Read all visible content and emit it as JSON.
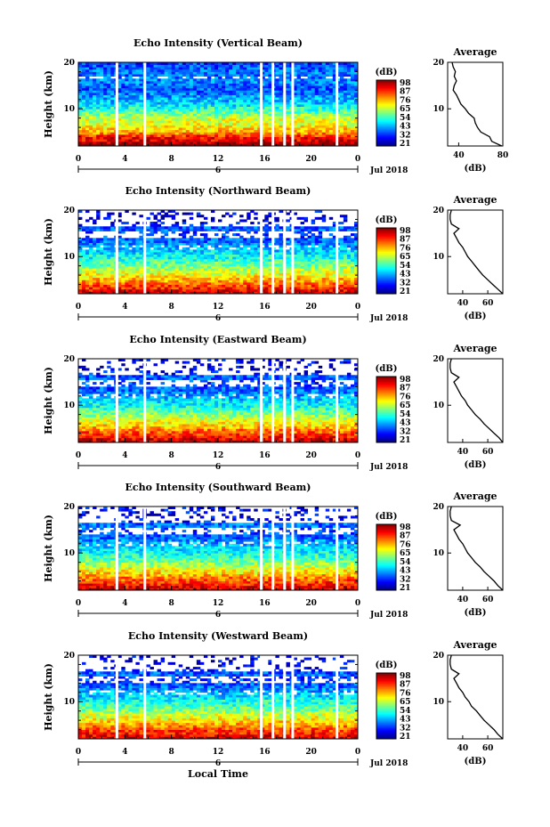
{
  "chart_data": [
    {
      "type": "heatmap",
      "title": "Echo Intensity (Vertical Beam)",
      "ylabel": "Height (km)",
      "x_ticks": [
        "0",
        "4",
        "8",
        "12",
        "16",
        "20",
        "0"
      ],
      "y_ticks": [
        "20",
        "10"
      ],
      "ylim": [
        2,
        20
      ],
      "day_label": "6",
      "month_label": "Jul 2018",
      "colorbar": {
        "unit": "(dB)",
        "ticks": [
          "98",
          "87",
          "76",
          "65",
          "54",
          "43",
          "32",
          "21"
        ],
        "range": [
          21,
          98
        ]
      },
      "missing_intervals_hours": [
        [
          3.2,
          3.4
        ],
        [
          5.6,
          5.7
        ],
        [
          15.6,
          15.8
        ],
        [
          16.6,
          16.8
        ],
        [
          17.6,
          17.7
        ],
        [
          18.3,
          18.45
        ],
        [
          22.1,
          22.3
        ]
      ],
      "average_profile": {
        "title": "Average",
        "xlabel": "(dB)",
        "x_ticks": [
          "40",
          "80"
        ],
        "xlim": [
          30,
          80
        ],
        "y_ticks": [
          "20",
          "10"
        ],
        "height_km": [
          2,
          3,
          4,
          5,
          6,
          7,
          8,
          9,
          10,
          11,
          12,
          13,
          14,
          15,
          16,
          17,
          18,
          19,
          20
        ],
        "db": [
          79,
          70,
          68,
          60,
          57,
          55,
          54,
          49,
          46,
          42,
          40,
          38,
          35,
          36,
          38,
          36,
          37,
          35,
          34
        ]
      }
    },
    {
      "type": "heatmap",
      "title": "Echo Intensity (Northward Beam)",
      "ylabel": "Height (km)",
      "x_ticks": [
        "0",
        "4",
        "8",
        "12",
        "16",
        "20",
        "0"
      ],
      "y_ticks": [
        "20",
        "10"
      ],
      "ylim": [
        2,
        20
      ],
      "day_label": "6",
      "month_label": "Jul 2018",
      "colorbar": {
        "unit": "(dB)",
        "ticks": [
          "98",
          "87",
          "76",
          "65",
          "54",
          "43",
          "32",
          "21"
        ],
        "range": [
          21,
          98
        ]
      },
      "missing_intervals_hours": [
        [
          3.2,
          3.4
        ],
        [
          5.6,
          5.7
        ],
        [
          15.6,
          15.8
        ],
        [
          16.6,
          16.8
        ],
        [
          17.6,
          17.7
        ],
        [
          18.3,
          18.45
        ],
        [
          22.1,
          22.3
        ]
      ],
      "average_profile": {
        "title": "Average",
        "xlabel": "(dB)",
        "x_ticks": [
          "40",
          "60"
        ],
        "xlim": [
          28,
          72
        ],
        "y_ticks": [
          "20",
          "10"
        ],
        "height_km": [
          2,
          3,
          4,
          5,
          6,
          7,
          8,
          9,
          10,
          11,
          12,
          13,
          14,
          15,
          16,
          17,
          18,
          19,
          20
        ],
        "db": [
          72,
          68,
          64,
          60,
          56,
          53,
          50,
          47,
          44,
          42,
          40,
          37,
          35,
          33,
          37,
          31,
          30,
          30,
          31
        ]
      }
    },
    {
      "type": "heatmap",
      "title": "Echo Intensity (Eastward Beam)",
      "ylabel": "Height (km)",
      "x_ticks": [
        "0",
        "4",
        "8",
        "12",
        "16",
        "20",
        "0"
      ],
      "y_ticks": [
        "20",
        "10"
      ],
      "ylim": [
        2,
        20
      ],
      "day_label": "6",
      "month_label": "Jul 2018",
      "colorbar": {
        "unit": "(dB)",
        "ticks": [
          "98",
          "87",
          "76",
          "65",
          "54",
          "43",
          "32",
          "21"
        ],
        "range": [
          21,
          98
        ]
      },
      "missing_intervals_hours": [
        [
          3.2,
          3.4
        ],
        [
          5.6,
          5.7
        ],
        [
          15.6,
          15.8
        ],
        [
          16.6,
          16.8
        ],
        [
          17.6,
          17.7
        ],
        [
          18.3,
          18.45
        ],
        [
          22.1,
          22.3
        ]
      ],
      "average_profile": {
        "title": "Average",
        "xlabel": "(dB)",
        "x_ticks": [
          "40",
          "60"
        ],
        "xlim": [
          28,
          72
        ],
        "y_ticks": [
          "20",
          "10"
        ],
        "height_km": [
          2,
          3,
          4,
          5,
          6,
          7,
          8,
          9,
          10,
          11,
          12,
          13,
          14,
          15,
          16,
          17,
          18,
          19,
          20
        ],
        "db": [
          72,
          69,
          65,
          61,
          57,
          54,
          50,
          47,
          44,
          42,
          39,
          37,
          35,
          33,
          37,
          31,
          30,
          30,
          31
        ]
      }
    },
    {
      "type": "heatmap",
      "title": "Echo Intensity (Southward Beam)",
      "ylabel": "Height (km)",
      "x_ticks": [
        "0",
        "4",
        "8",
        "12",
        "16",
        "20",
        "0"
      ],
      "y_ticks": [
        "20",
        "10"
      ],
      "ylim": [
        2,
        20
      ],
      "day_label": "6",
      "month_label": "Jul 2018",
      "colorbar": {
        "unit": "(dB)",
        "ticks": [
          "98",
          "87",
          "76",
          "65",
          "54",
          "43",
          "32",
          "21"
        ],
        "range": [
          21,
          98
        ]
      },
      "missing_intervals_hours": [
        [
          3.2,
          3.4
        ],
        [
          5.6,
          5.7
        ],
        [
          15.6,
          15.8
        ],
        [
          16.6,
          16.8
        ],
        [
          17.6,
          17.7
        ],
        [
          18.3,
          18.45
        ],
        [
          22.1,
          22.3
        ]
      ],
      "average_profile": {
        "title": "Average",
        "xlabel": "(dB)",
        "x_ticks": [
          "40",
          "60"
        ],
        "xlim": [
          28,
          72
        ],
        "y_ticks": [
          "20",
          "10"
        ],
        "height_km": [
          2,
          3,
          4,
          5,
          6,
          7,
          8,
          9,
          10,
          11,
          12,
          13,
          14,
          15,
          16,
          17,
          18,
          19,
          20
        ],
        "db": [
          72,
          68,
          65,
          61,
          57,
          54,
          50,
          47,
          44,
          42,
          40,
          37,
          35,
          33,
          38,
          31,
          30,
          30,
          31
        ]
      }
    },
    {
      "type": "heatmap",
      "title": "Echo Intensity (Westward Beam)",
      "ylabel": "Height (km)",
      "xlabel": "Local Time",
      "x_ticks": [
        "0",
        "4",
        "8",
        "12",
        "16",
        "20",
        "0"
      ],
      "y_ticks": [
        "20",
        "10"
      ],
      "ylim": [
        2,
        20
      ],
      "day_label": "6",
      "month_label": "Jul 2018",
      "colorbar": {
        "unit": "(dB)",
        "ticks": [
          "98",
          "87",
          "76",
          "65",
          "54",
          "43",
          "32",
          "21"
        ],
        "range": [
          21,
          98
        ]
      },
      "missing_intervals_hours": [
        [
          3.2,
          3.4
        ],
        [
          5.6,
          5.7
        ],
        [
          15.6,
          15.8
        ],
        [
          16.6,
          16.8
        ],
        [
          17.6,
          17.7
        ],
        [
          18.3,
          18.45
        ],
        [
          22.1,
          22.3
        ]
      ],
      "average_profile": {
        "title": "Average",
        "xlabel": "(dB)",
        "x_ticks": [
          "40",
          "60"
        ],
        "xlim": [
          28,
          72
        ],
        "y_ticks": [
          "20",
          "10"
        ],
        "height_km": [
          2,
          3,
          4,
          5,
          6,
          7,
          8,
          9,
          10,
          11,
          12,
          13,
          14,
          15,
          16,
          17,
          18,
          19,
          20
        ],
        "db": [
          72,
          68,
          65,
          61,
          57,
          54,
          51,
          47,
          45,
          42,
          40,
          37,
          35,
          33,
          37,
          31,
          30,
          30,
          31
        ]
      }
    }
  ]
}
